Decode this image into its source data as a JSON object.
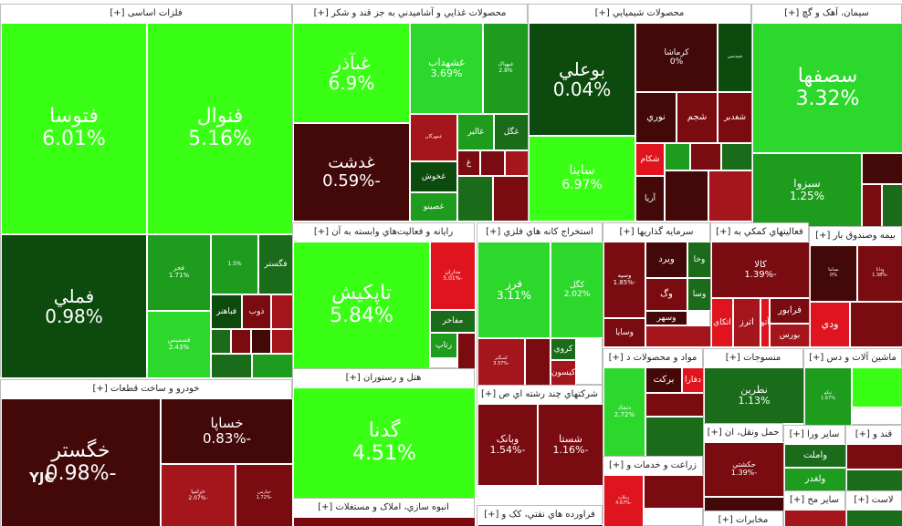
{
  "palette": {
    "bright": "#39ff14",
    "lime": "#2bd82b",
    "green": "#1e9c1e",
    "forest": "#1a6b1a",
    "darkgreen": "#0d4a0d",
    "red": "#e0141e",
    "crimson": "#a4151c",
    "maroon": "#7a0b10",
    "darkmaroon": "#430808"
  },
  "sectors": [
    {
      "title": "فلزات اساسی [+]",
      "cells": [
        {
          "symbol": "فتوسا",
          "percent": "6.01%",
          "color": "bright"
        },
        {
          "symbol": "فنوال",
          "percent": "5.16%",
          "color": "bright"
        },
        {
          "symbol": "فملي",
          "percent": "0.98%",
          "color": "darkgreen"
        },
        {
          "symbol": "فجر",
          "percent": "1.71%",
          "color": "green"
        },
        {
          "symbol": "",
          "percent": "1.5%",
          "color": "green"
        },
        {
          "symbol": "فگستر",
          "percent": "",
          "color": "forest"
        },
        {
          "symbol": "فسميس",
          "percent": "2.43%",
          "color": "lime"
        },
        {
          "symbol": "فباهنر",
          "percent": "",
          "color": "darkgreen"
        },
        {
          "symbol": "ذوب",
          "percent": "",
          "color": "maroon"
        },
        {
          "symbol": "",
          "percent": "",
          "color": "crimson"
        },
        {
          "symbol": "",
          "percent": "",
          "color": "forest"
        },
        {
          "symbol": "",
          "percent": "",
          "color": "maroon"
        },
        {
          "symbol": "",
          "percent": "",
          "color": "darkmaroon"
        },
        {
          "symbol": "",
          "percent": "",
          "color": "crimson"
        },
        {
          "symbol": "",
          "percent": "",
          "color": "forest"
        },
        {
          "symbol": "",
          "percent": "",
          "color": "green"
        }
      ]
    },
    {
      "title": "محصولات غذايي و آشاميدني به جز قند و شکر [+]",
      "cells": [
        {
          "symbol": "غبآذر",
          "percent": "6.9%",
          "color": "bright"
        },
        {
          "symbol": "غشهداب",
          "percent": "3.69%",
          "color": "lime"
        },
        {
          "symbol": "غبهپاک",
          "percent": "2.8%",
          "color": "green"
        },
        {
          "symbol": "غدشت",
          "percent": "-0.59%",
          "color": "darkmaroon"
        },
        {
          "symbol": "غمهرگان",
          "percent": "",
          "color": "crimson"
        },
        {
          "symbol": "غالبر",
          "percent": "",
          "color": "green"
        },
        {
          "symbol": "غگل",
          "percent": "",
          "color": "forest"
        },
        {
          "symbol": "غ",
          "percent": "",
          "color": "maroon"
        },
        {
          "symbol": "غخوش",
          "percent": "",
          "color": "darkgreen"
        },
        {
          "symbol": "غصينو",
          "percent": "",
          "color": "green"
        },
        {
          "symbol": "",
          "percent": "",
          "color": "maroon"
        },
        {
          "symbol": "",
          "percent": "",
          "color": "crimson"
        },
        {
          "symbol": "",
          "percent": "",
          "color": "forest"
        },
        {
          "symbol": "",
          "percent": "",
          "color": "maroon"
        }
      ]
    },
    {
      "title": "محصولات شيميايي [+]",
      "cells": [
        {
          "symbol": "بوعلي",
          "percent": "0.04%",
          "color": "darkgreen"
        },
        {
          "symbol": "کرماشا",
          "percent": "0%",
          "color": "darkmaroon"
        },
        {
          "symbol": "شپديس",
          "percent": "",
          "color": "darkgreen"
        },
        {
          "symbol": "شجم",
          "percent": "",
          "color": "maroon"
        },
        {
          "symbol": "نوري",
          "percent": "",
          "color": "darkmaroon"
        },
        {
          "symbol": "شغدير",
          "percent": "",
          "color": "maroon"
        },
        {
          "symbol": "ساينا",
          "percent": "6.97%",
          "color": "bright"
        },
        {
          "symbol": "شکام",
          "percent": "",
          "color": "red"
        },
        {
          "symbol": "آريا",
          "percent": "",
          "color": "darkmaroon"
        },
        {
          "symbol": "",
          "percent": "",
          "color": "green"
        },
        {
          "symbol": "",
          "percent": "",
          "color": "maroon"
        },
        {
          "symbol": "",
          "percent": "",
          "color": "forest"
        },
        {
          "symbol": "",
          "percent": "",
          "color": "darkmaroon"
        },
        {
          "symbol": "",
          "percent": "",
          "color": "crimson"
        }
      ]
    },
    {
      "title": "سيمان، آهک و گچ [+]",
      "cells": [
        {
          "symbol": "سصفها",
          "percent": "3.32%",
          "color": "lime"
        },
        {
          "symbol": "سبزوا",
          "percent": "1.25%",
          "color": "green"
        },
        {
          "symbol": "",
          "percent": "",
          "color": "darkmaroon"
        },
        {
          "symbol": "",
          "percent": "",
          "color": "maroon"
        },
        {
          "symbol": "",
          "percent": "",
          "color": "forest"
        }
      ]
    },
    {
      "title": "رايانه و فعاليت‌هاي وابسته به آن [+]",
      "cells": [
        {
          "symbol": "تاپکيش",
          "percent": "5.84%",
          "color": "bright"
        },
        {
          "symbol": "مداران",
          "percent": "-5.01%",
          "color": "red"
        },
        {
          "symbol": "مفاخر",
          "percent": "",
          "color": "forest"
        },
        {
          "symbol": "رتاپ",
          "percent": "",
          "color": "green"
        },
        {
          "symbol": "",
          "percent": "",
          "color": "maroon"
        }
      ]
    },
    {
      "title": "استخراج کانه هاي فلزي [+]",
      "cells": [
        {
          "symbol": "فرز",
          "percent": "3.11%",
          "color": "lime"
        },
        {
          "symbol": "کگل",
          "percent": "2.02%",
          "color": "lime"
        },
        {
          "symbol": "کمنگنز",
          "percent": "-3.37%",
          "color": "crimson"
        },
        {
          "symbol": "کروي",
          "percent": "",
          "color": "forest"
        },
        {
          "symbol": "کيسون",
          "percent": "",
          "color": "crimson"
        },
        {
          "symbol": "",
          "percent": "",
          "color": "maroon"
        }
      ]
    },
    {
      "title": "هتل و رستوران [+]",
      "cells": [
        {
          "symbol": "گدنا",
          "percent": "4.51%",
          "color": "bright"
        }
      ]
    },
    {
      "title": "انبوه سازي، املاک و مستغلات [+]",
      "cells": [
        {
          "symbol": "",
          "percent": "",
          "color": "maroon"
        }
      ]
    },
    {
      "title": "خودرو و ساخت قطعات [+]",
      "cells": [
        {
          "symbol": "خگستر",
          "percent": "-0.98%",
          "color": "darkmaroon"
        },
        {
          "symbol": "خساپا",
          "percent": "-0.83%",
          "color": "darkmaroon"
        },
        {
          "symbol": "خزاميا",
          "percent": "-2.07%",
          "color": "crimson"
        },
        {
          "symbol": "خپارس",
          "percent": "-1.72%",
          "color": "maroon"
        }
      ]
    },
    {
      "title": "سرمايه گذاريها [+]",
      "cells": [
        {
          "symbol": "وسپه",
          "percent": "-1.85%",
          "color": "maroon"
        },
        {
          "symbol": "ويرد",
          "percent": "",
          "color": "darkmaroon"
        },
        {
          "symbol": "وخا",
          "percent": "",
          "color": "forest"
        },
        {
          "symbol": "وگ",
          "percent": "",
          "color": "maroon"
        },
        {
          "symbol": "وسا",
          "percent": "",
          "color": "forest"
        },
        {
          "symbol": "وسهر",
          "percent": "",
          "color": "darkmaroon"
        },
        {
          "symbol": "وسايا",
          "percent": "",
          "color": "maroon"
        },
        {
          "symbol": "",
          "percent": "",
          "color": "crimson"
        }
      ]
    },
    {
      "title": "فعاليتهاي کمکي به [+]",
      "cells": [
        {
          "symbol": "کالا",
          "percent": "-1.39%",
          "color": "maroon"
        },
        {
          "symbol": "اتکاي",
          "percent": "",
          "color": "red"
        },
        {
          "symbol": "اترز",
          "percent": "",
          "color": "crimson"
        },
        {
          "symbol": "آتو",
          "percent": "",
          "color": "red"
        },
        {
          "symbol": "فرابور",
          "percent": "",
          "color": "maroon"
        },
        {
          "symbol": "بورس",
          "percent": "",
          "color": "crimson"
        }
      ]
    },
    {
      "title": "بيمه وصندوق بار [+]",
      "cells": [
        {
          "symbol": "بساما",
          "percent": "0%",
          "color": "darkmaroon"
        },
        {
          "symbol": "ودانا",
          "percent": "-1.38%",
          "color": "maroon"
        },
        {
          "symbol": "ودي",
          "percent": "",
          "color": "red"
        },
        {
          "symbol": "",
          "percent": "",
          "color": "maroon"
        }
      ]
    },
    {
      "title": "شرکتهاي چند رشته اي ص [+]",
      "cells": [
        {
          "symbol": "وبانک",
          "percent": "-1.54%",
          "color": "maroon"
        },
        {
          "symbol": "شستا",
          "percent": "-1.16%",
          "color": "maroon"
        }
      ]
    },
    {
      "title": "مواد و محصولات د [+]",
      "cells": [
        {
          "symbol": "دتماد",
          "percent": "2.72%",
          "color": "lime"
        },
        {
          "symbol": "برکت",
          "percent": "",
          "color": "darkmaroon"
        },
        {
          "symbol": "دفارا",
          "percent": "",
          "color": "red"
        },
        {
          "symbol": "",
          "percent": "",
          "color": "maroon"
        },
        {
          "symbol": "",
          "percent": "",
          "color": "forest"
        }
      ]
    },
    {
      "title": "منسوجات [+]",
      "cells": [
        {
          "symbol": "نطرين",
          "percent": "1.13%",
          "color": "forest"
        }
      ]
    },
    {
      "title": "ماشين آلات و دس [+]",
      "cells": [
        {
          "symbol": "تپکو",
          "percent": "1.67%",
          "color": "green"
        },
        {
          "symbol": "",
          "percent": "",
          "color": "bright"
        }
      ]
    },
    {
      "title": "زراعت و خدمات و [+]",
      "cells": [
        {
          "symbol": "زملارد",
          "percent": "-4.67%",
          "color": "red"
        },
        {
          "symbol": "",
          "percent": "",
          "color": "maroon"
        }
      ]
    },
    {
      "title": "حمل ونقل، ان [+]",
      "cells": [
        {
          "symbol": "حکشتي",
          "percent": "-1.39%",
          "color": "maroon"
        },
        {
          "symbol": "",
          "percent": "",
          "color": "darkmaroon"
        }
      ]
    },
    {
      "title": "ساير ورا [+]",
      "cells": [
        {
          "symbol": "واملت",
          "percent": "",
          "color": "forest"
        },
        {
          "symbol": "ولغدر",
          "percent": "",
          "color": "green"
        }
      ]
    },
    {
      "title": "قند و [+]",
      "cells": [
        {
          "symbol": "",
          "percent": "",
          "color": "maroon"
        },
        {
          "symbol": "",
          "percent": "",
          "color": "forest"
        }
      ]
    },
    {
      "title": "فراورده هاي نفتي، کک و [+]",
      "cells": [
        {
          "symbol": "",
          "percent": "",
          "color": "maroon"
        }
      ]
    },
    {
      "title": "مخابرات [+]",
      "cells": [
        {
          "symbol": "",
          "percent": "",
          "color": "maroon"
        }
      ]
    },
    {
      "title": "ساير مح [+]",
      "cells": [
        {
          "symbol": "",
          "percent": "",
          "color": "crimson"
        }
      ]
    },
    {
      "title": "لاست [+]",
      "cells": [
        {
          "symbol": "",
          "percent": "",
          "color": "forest"
        }
      ]
    }
  ],
  "watermark": "YJC"
}
